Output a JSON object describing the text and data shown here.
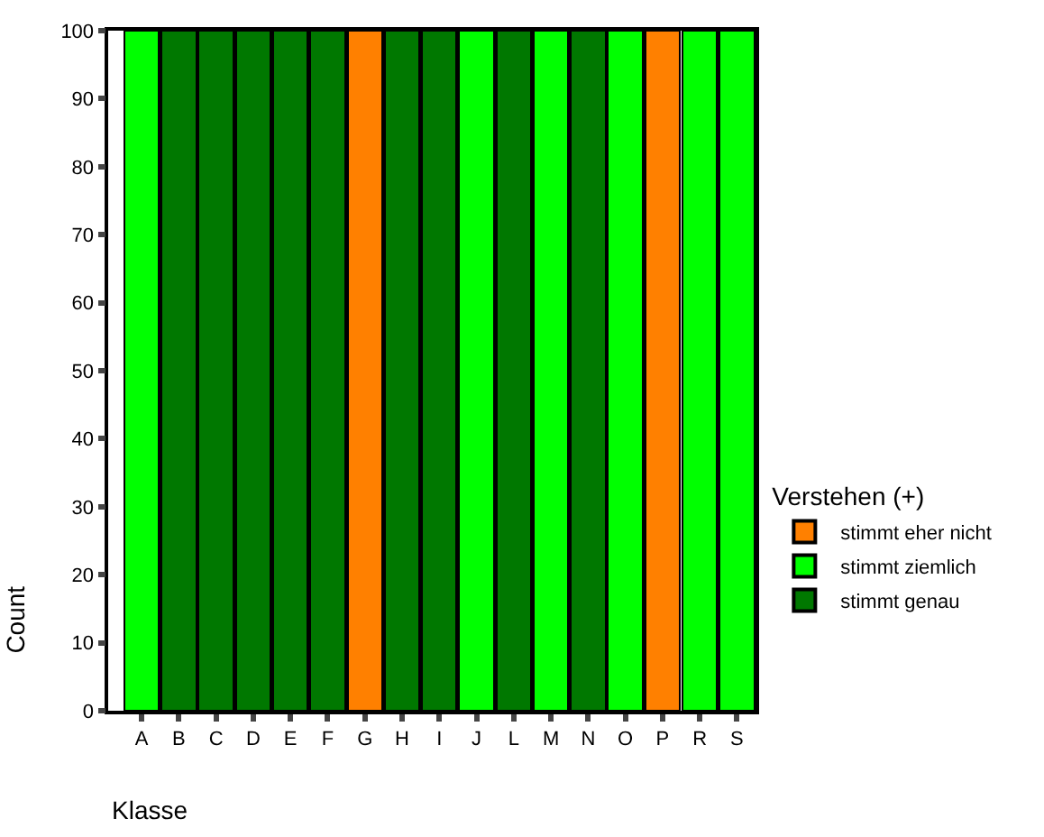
{
  "chart_data": {
    "type": "bar",
    "stacked": true,
    "xlabel": "Klasse",
    "ylabel": "Count",
    "legend_title": "Verstehen (+)",
    "legend": "right",
    "categories": [
      "A",
      "B",
      "C",
      "D",
      "E",
      "F",
      "G",
      "H",
      "I",
      "J",
      "L",
      "M",
      "N",
      "O",
      "P",
      "R",
      "S"
    ],
    "series": [
      {
        "name": "stimmt eher nicht",
        "color": "#ff8000",
        "values": [
          null,
          null,
          null,
          null,
          null,
          null,
          100,
          null,
          null,
          null,
          null,
          null,
          null,
          null,
          100,
          null,
          null
        ]
      },
      {
        "name": "stimmt ziemlich",
        "color": "#00ff00",
        "values": [
          100,
          null,
          null,
          null,
          null,
          null,
          null,
          null,
          null,
          100,
          null,
          100,
          null,
          100,
          null,
          100,
          100
        ]
      },
      {
        "name": "stimmt genau",
        "color": "#007800",
        "values": [
          null,
          100,
          100,
          100,
          100,
          100,
          null,
          100,
          100,
          null,
          100,
          null,
          100,
          null,
          null,
          null,
          null
        ]
      }
    ],
    "ylim": [
      0,
      100
    ],
    "yticks": [
      0,
      10,
      20,
      30,
      40,
      50,
      60,
      70,
      80,
      90,
      100
    ]
  }
}
